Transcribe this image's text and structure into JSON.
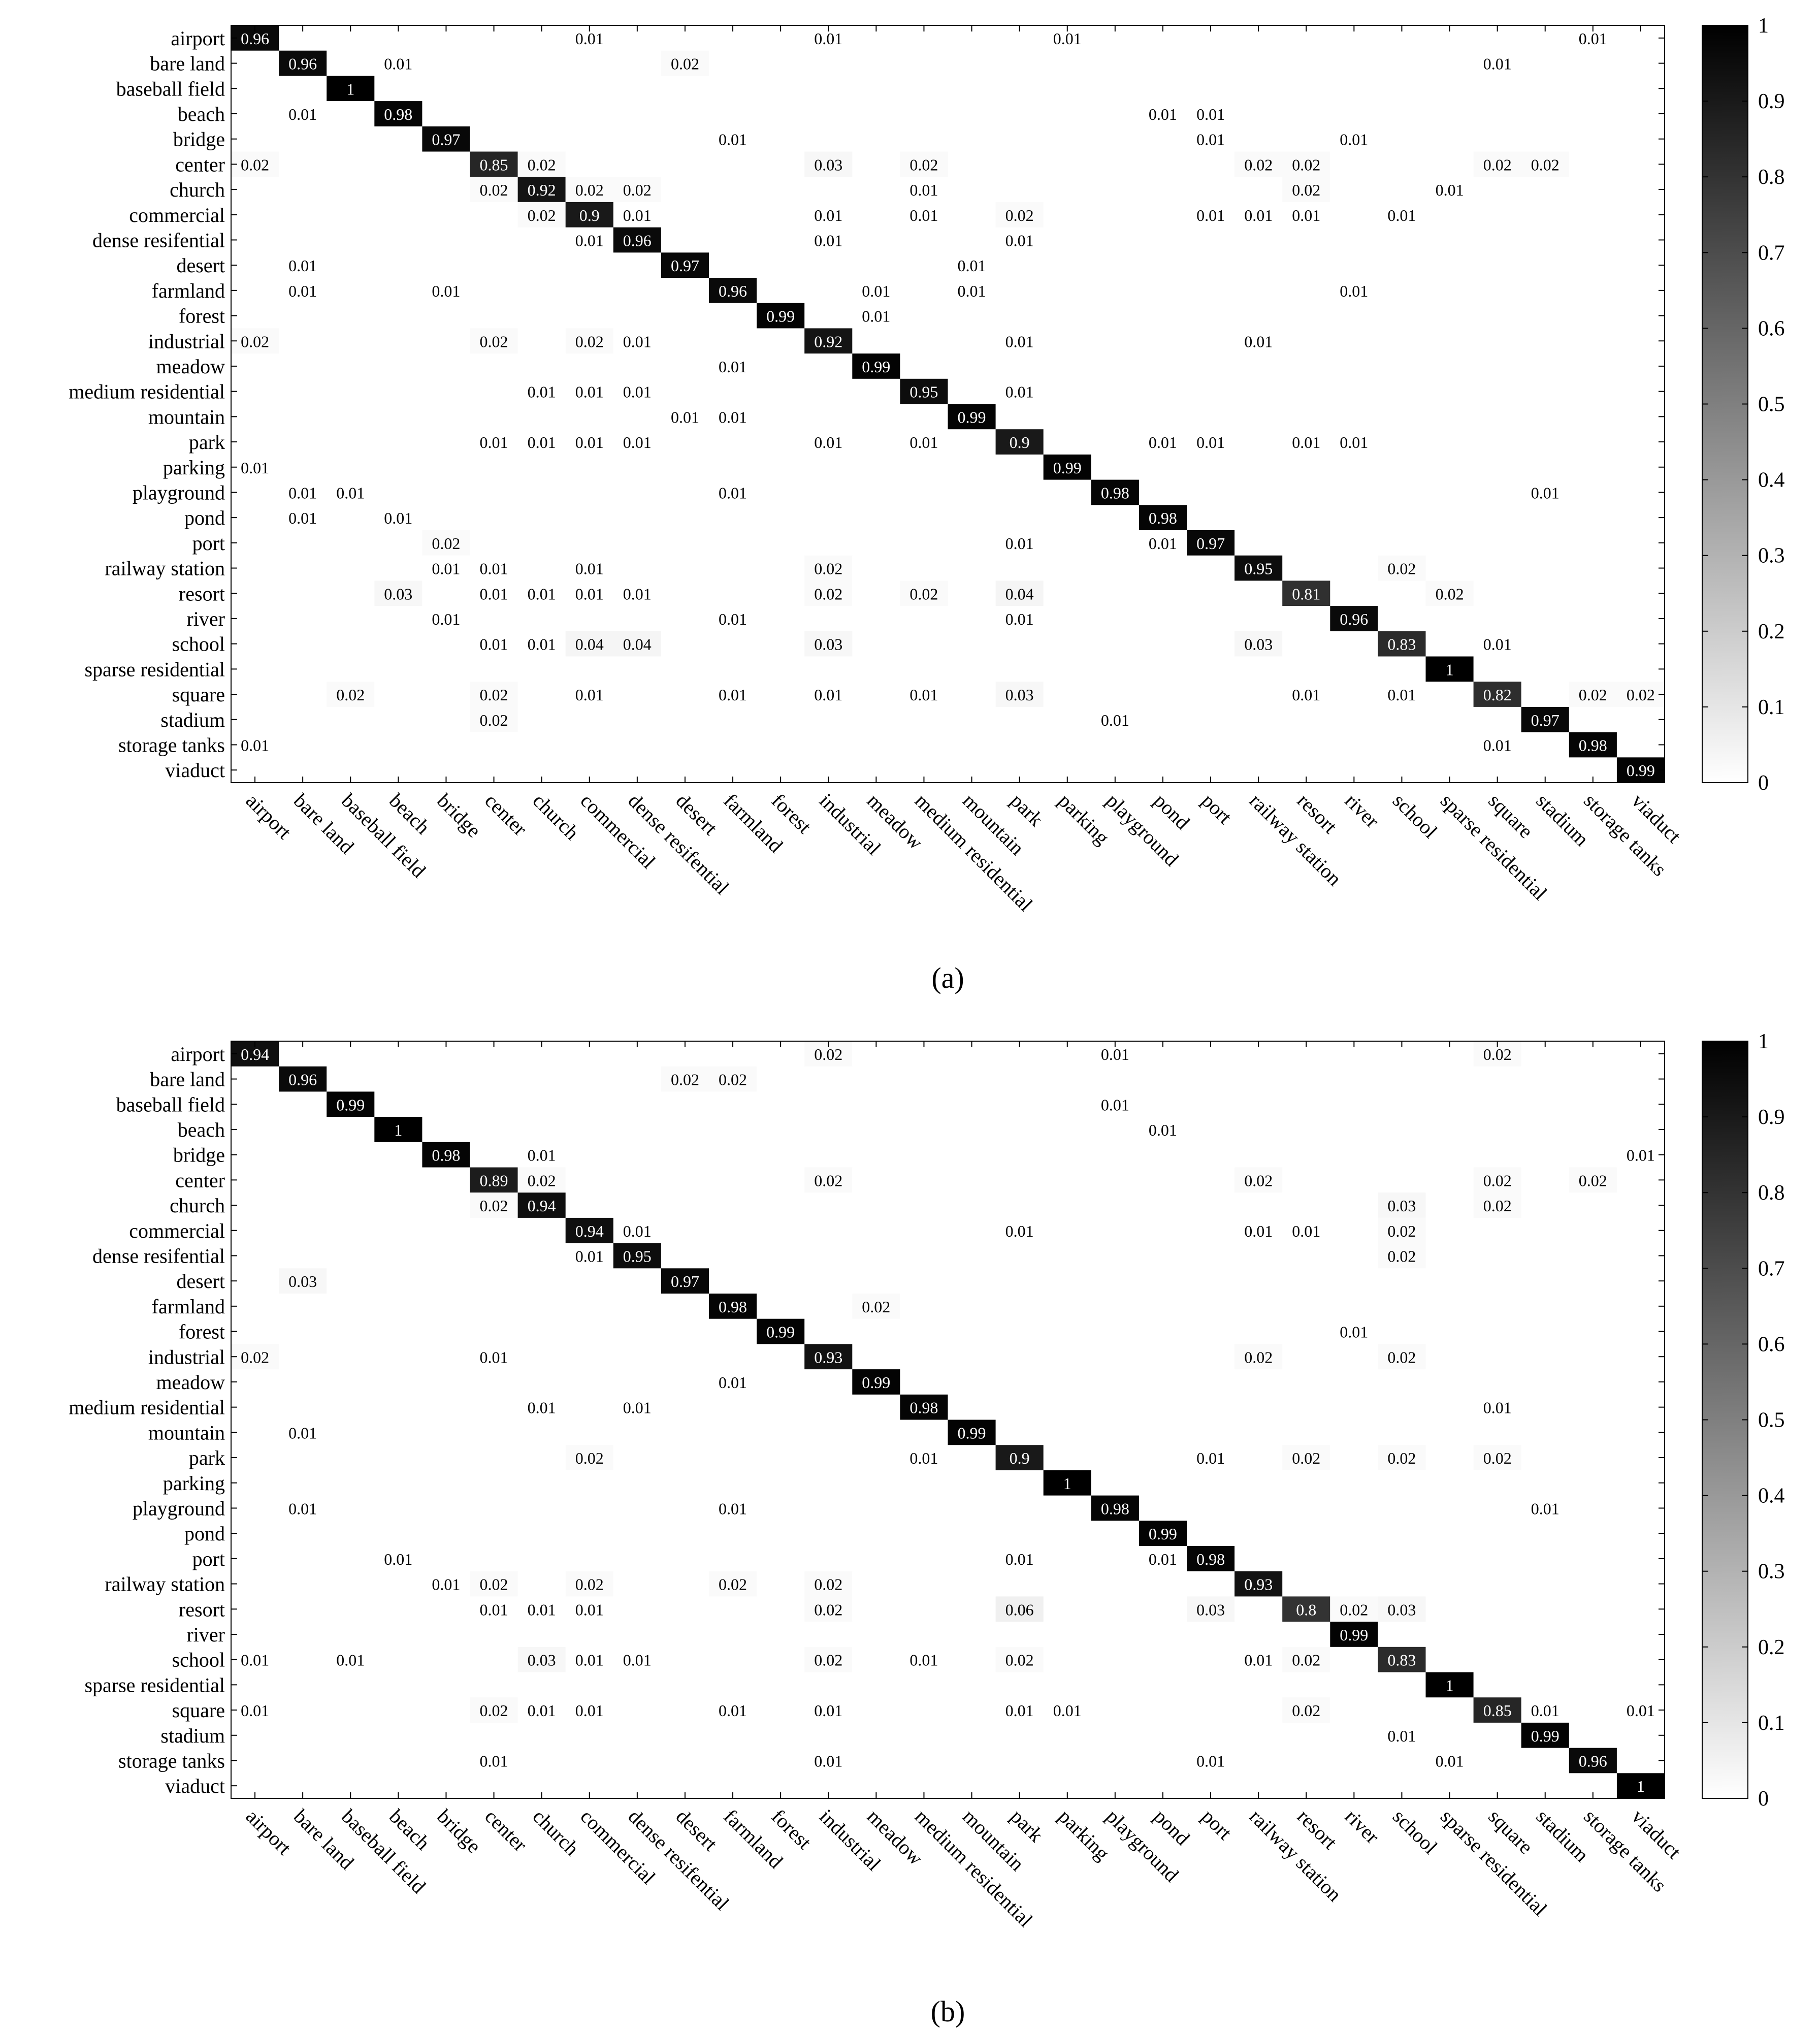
{
  "classes": [
    "airport",
    "bare land",
    "baseball field",
    "beach",
    "bridge",
    "center",
    "church",
    "commercial",
    "dense resifential",
    "desert",
    "farmland",
    "forest",
    "industrial",
    "meadow",
    "medium residential",
    "mountain",
    "park",
    "parking",
    "playground",
    "pond",
    "port",
    "railway station",
    "resort",
    "river",
    "school",
    "sparse residential",
    "square",
    "stadium",
    "storage tanks",
    "viaduct"
  ],
  "chart_data": [
    {
      "type": "heatmap",
      "panel_label": "(a)",
      "title": "",
      "xlabel": "",
      "ylabel": "",
      "vmin": 0,
      "vmax": 1,
      "colorbar_ticks": [
        "0",
        "0.1",
        "0.2",
        "0.3",
        "0.4",
        "0.5",
        "0.6",
        "0.7",
        "0.8",
        "0.9",
        "1"
      ],
      "cells": [
        [
          0,
          0,
          "0.96"
        ],
        [
          0,
          7,
          "0.01"
        ],
        [
          0,
          12,
          "0.01"
        ],
        [
          0,
          17,
          "0.01"
        ],
        [
          0,
          28,
          "0.01"
        ],
        [
          1,
          1,
          "0.96"
        ],
        [
          1,
          3,
          "0.01"
        ],
        [
          1,
          9,
          "0.02"
        ],
        [
          1,
          26,
          "0.01"
        ],
        [
          2,
          2,
          "1"
        ],
        [
          3,
          1,
          "0.01"
        ],
        [
          3,
          3,
          "0.98"
        ],
        [
          3,
          19,
          "0.01"
        ],
        [
          3,
          20,
          "0.01"
        ],
        [
          4,
          4,
          "0.97"
        ],
        [
          4,
          10,
          "0.01"
        ],
        [
          4,
          20,
          "0.01"
        ],
        [
          4,
          23,
          "0.01"
        ],
        [
          5,
          0,
          "0.02"
        ],
        [
          5,
          5,
          "0.85"
        ],
        [
          5,
          6,
          "0.02"
        ],
        [
          5,
          12,
          "0.03"
        ],
        [
          5,
          14,
          "0.02"
        ],
        [
          5,
          21,
          "0.02"
        ],
        [
          5,
          22,
          "0.02"
        ],
        [
          5,
          26,
          "0.02"
        ],
        [
          5,
          27,
          "0.02"
        ],
        [
          6,
          5,
          "0.02"
        ],
        [
          6,
          6,
          "0.92"
        ],
        [
          6,
          7,
          "0.02"
        ],
        [
          6,
          8,
          "0.02"
        ],
        [
          6,
          14,
          "0.01"
        ],
        [
          6,
          22,
          "0.02"
        ],
        [
          6,
          25,
          "0.01"
        ],
        [
          7,
          6,
          "0.02"
        ],
        [
          7,
          7,
          "0.9"
        ],
        [
          7,
          8,
          "0.01"
        ],
        [
          7,
          12,
          "0.01"
        ],
        [
          7,
          14,
          "0.01"
        ],
        [
          7,
          16,
          "0.02"
        ],
        [
          7,
          20,
          "0.01"
        ],
        [
          7,
          21,
          "0.01"
        ],
        [
          7,
          22,
          "0.01"
        ],
        [
          7,
          24,
          "0.01"
        ],
        [
          8,
          7,
          "0.01"
        ],
        [
          8,
          8,
          "0.96"
        ],
        [
          8,
          12,
          "0.01"
        ],
        [
          8,
          16,
          "0.01"
        ],
        [
          9,
          1,
          "0.01"
        ],
        [
          9,
          9,
          "0.97"
        ],
        [
          9,
          15,
          "0.01"
        ],
        [
          10,
          1,
          "0.01"
        ],
        [
          10,
          4,
          "0.01"
        ],
        [
          10,
          10,
          "0.96"
        ],
        [
          10,
          13,
          "0.01"
        ],
        [
          10,
          15,
          "0.01"
        ],
        [
          10,
          23,
          "0.01"
        ],
        [
          11,
          11,
          "0.99"
        ],
        [
          11,
          13,
          "0.01"
        ],
        [
          12,
          0,
          "0.02"
        ],
        [
          12,
          5,
          "0.02"
        ],
        [
          12,
          7,
          "0.02"
        ],
        [
          12,
          8,
          "0.01"
        ],
        [
          12,
          12,
          "0.92"
        ],
        [
          12,
          16,
          "0.01"
        ],
        [
          12,
          21,
          "0.01"
        ],
        [
          13,
          10,
          "0.01"
        ],
        [
          13,
          13,
          "0.99"
        ],
        [
          14,
          6,
          "0.01"
        ],
        [
          14,
          7,
          "0.01"
        ],
        [
          14,
          8,
          "0.01"
        ],
        [
          14,
          14,
          "0.95"
        ],
        [
          14,
          16,
          "0.01"
        ],
        [
          15,
          9,
          "0.01"
        ],
        [
          15,
          10,
          "0.01"
        ],
        [
          15,
          15,
          "0.99"
        ],
        [
          16,
          5,
          "0.01"
        ],
        [
          16,
          6,
          "0.01"
        ],
        [
          16,
          7,
          "0.01"
        ],
        [
          16,
          8,
          "0.01"
        ],
        [
          16,
          12,
          "0.01"
        ],
        [
          16,
          14,
          "0.01"
        ],
        [
          16,
          16,
          "0.9"
        ],
        [
          16,
          19,
          "0.01"
        ],
        [
          16,
          20,
          "0.01"
        ],
        [
          16,
          22,
          "0.01"
        ],
        [
          16,
          23,
          "0.01"
        ],
        [
          17,
          0,
          "0.01"
        ],
        [
          17,
          17,
          "0.99"
        ],
        [
          18,
          1,
          "0.01"
        ],
        [
          18,
          2,
          "0.01"
        ],
        [
          18,
          10,
          "0.01"
        ],
        [
          18,
          18,
          "0.98"
        ],
        [
          18,
          27,
          "0.01"
        ],
        [
          19,
          1,
          "0.01"
        ],
        [
          19,
          3,
          "0.01"
        ],
        [
          19,
          19,
          "0.98"
        ],
        [
          20,
          4,
          "0.02"
        ],
        [
          20,
          16,
          "0.01"
        ],
        [
          20,
          19,
          "0.01"
        ],
        [
          20,
          20,
          "0.97"
        ],
        [
          21,
          4,
          "0.01"
        ],
        [
          21,
          5,
          "0.01"
        ],
        [
          21,
          7,
          "0.01"
        ],
        [
          21,
          12,
          "0.02"
        ],
        [
          21,
          21,
          "0.95"
        ],
        [
          21,
          24,
          "0.02"
        ],
        [
          22,
          3,
          "0.03"
        ],
        [
          22,
          5,
          "0.01"
        ],
        [
          22,
          6,
          "0.01"
        ],
        [
          22,
          7,
          "0.01"
        ],
        [
          22,
          8,
          "0.01"
        ],
        [
          22,
          12,
          "0.02"
        ],
        [
          22,
          14,
          "0.02"
        ],
        [
          22,
          16,
          "0.04"
        ],
        [
          22,
          22,
          "0.81"
        ],
        [
          22,
          25,
          "0.02"
        ],
        [
          23,
          4,
          "0.01"
        ],
        [
          23,
          10,
          "0.01"
        ],
        [
          23,
          16,
          "0.01"
        ],
        [
          23,
          23,
          "0.96"
        ],
        [
          24,
          5,
          "0.01"
        ],
        [
          24,
          6,
          "0.01"
        ],
        [
          24,
          7,
          "0.04"
        ],
        [
          24,
          8,
          "0.04"
        ],
        [
          24,
          12,
          "0.03"
        ],
        [
          24,
          21,
          "0.03"
        ],
        [
          24,
          24,
          "0.83"
        ],
        [
          24,
          26,
          "0.01"
        ],
        [
          25,
          25,
          "1"
        ],
        [
          26,
          2,
          "0.02"
        ],
        [
          26,
          5,
          "0.02"
        ],
        [
          26,
          7,
          "0.01"
        ],
        [
          26,
          10,
          "0.01"
        ],
        [
          26,
          12,
          "0.01"
        ],
        [
          26,
          14,
          "0.01"
        ],
        [
          26,
          16,
          "0.03"
        ],
        [
          26,
          22,
          "0.01"
        ],
        [
          26,
          24,
          "0.01"
        ],
        [
          26,
          26,
          "0.82"
        ],
        [
          26,
          28,
          "0.02"
        ],
        [
          26,
          29,
          "0.02"
        ],
        [
          27,
          5,
          "0.02"
        ],
        [
          27,
          18,
          "0.01"
        ],
        [
          27,
          27,
          "0.97"
        ],
        [
          28,
          0,
          "0.01"
        ],
        [
          28,
          26,
          "0.01"
        ],
        [
          28,
          28,
          "0.98"
        ],
        [
          29,
          29,
          "0.99"
        ]
      ]
    },
    {
      "type": "heatmap",
      "panel_label": "(b)",
      "title": "",
      "xlabel": "",
      "ylabel": "",
      "vmin": 0,
      "vmax": 1,
      "colorbar_ticks": [
        "0",
        "0.1",
        "0.2",
        "0.3",
        "0.4",
        "0.5",
        "0.6",
        "0.7",
        "0.8",
        "0.9",
        "1"
      ],
      "cells": [
        [
          0,
          0,
          "0.94"
        ],
        [
          0,
          12,
          "0.02"
        ],
        [
          0,
          18,
          "0.01"
        ],
        [
          0,
          26,
          "0.02"
        ],
        [
          1,
          1,
          "0.96"
        ],
        [
          1,
          9,
          "0.02"
        ],
        [
          1,
          10,
          "0.02"
        ],
        [
          2,
          2,
          "0.99"
        ],
        [
          2,
          18,
          "0.01"
        ],
        [
          3,
          3,
          "1"
        ],
        [
          3,
          19,
          "0.01"
        ],
        [
          4,
          4,
          "0.98"
        ],
        [
          4,
          6,
          "0.01"
        ],
        [
          4,
          29,
          "0.01"
        ],
        [
          5,
          5,
          "0.89"
        ],
        [
          5,
          6,
          "0.02"
        ],
        [
          5,
          12,
          "0.02"
        ],
        [
          5,
          21,
          "0.02"
        ],
        [
          5,
          26,
          "0.02"
        ],
        [
          5,
          28,
          "0.02"
        ],
        [
          6,
          5,
          "0.02"
        ],
        [
          6,
          6,
          "0.94"
        ],
        [
          6,
          24,
          "0.03"
        ],
        [
          6,
          26,
          "0.02"
        ],
        [
          7,
          7,
          "0.94"
        ],
        [
          7,
          8,
          "0.01"
        ],
        [
          7,
          16,
          "0.01"
        ],
        [
          7,
          21,
          "0.01"
        ],
        [
          7,
          22,
          "0.01"
        ],
        [
          7,
          24,
          "0.02"
        ],
        [
          8,
          7,
          "0.01"
        ],
        [
          8,
          8,
          "0.95"
        ],
        [
          8,
          24,
          "0.02"
        ],
        [
          9,
          1,
          "0.03"
        ],
        [
          9,
          9,
          "0.97"
        ],
        [
          10,
          10,
          "0.98"
        ],
        [
          10,
          13,
          "0.02"
        ],
        [
          11,
          11,
          "0.99"
        ],
        [
          11,
          23,
          "0.01"
        ],
        [
          12,
          0,
          "0.02"
        ],
        [
          12,
          5,
          "0.01"
        ],
        [
          12,
          12,
          "0.93"
        ],
        [
          12,
          21,
          "0.02"
        ],
        [
          12,
          24,
          "0.02"
        ],
        [
          13,
          10,
          "0.01"
        ],
        [
          13,
          13,
          "0.99"
        ],
        [
          14,
          6,
          "0.01"
        ],
        [
          14,
          8,
          "0.01"
        ],
        [
          14,
          14,
          "0.98"
        ],
        [
          14,
          26,
          "0.01"
        ],
        [
          15,
          1,
          "0.01"
        ],
        [
          15,
          15,
          "0.99"
        ],
        [
          16,
          7,
          "0.02"
        ],
        [
          16,
          14,
          "0.01"
        ],
        [
          16,
          16,
          "0.9"
        ],
        [
          16,
          20,
          "0.01"
        ],
        [
          16,
          22,
          "0.02"
        ],
        [
          16,
          24,
          "0.02"
        ],
        [
          16,
          26,
          "0.02"
        ],
        [
          17,
          17,
          "1"
        ],
        [
          18,
          1,
          "0.01"
        ],
        [
          18,
          10,
          "0.01"
        ],
        [
          18,
          18,
          "0.98"
        ],
        [
          18,
          27,
          "0.01"
        ],
        [
          19,
          19,
          "0.99"
        ],
        [
          20,
          3,
          "0.01"
        ],
        [
          20,
          16,
          "0.01"
        ],
        [
          20,
          19,
          "0.01"
        ],
        [
          20,
          20,
          "0.98"
        ],
        [
          21,
          4,
          "0.01"
        ],
        [
          21,
          5,
          "0.02"
        ],
        [
          21,
          7,
          "0.02"
        ],
        [
          21,
          10,
          "0.02"
        ],
        [
          21,
          12,
          "0.02"
        ],
        [
          21,
          21,
          "0.93"
        ],
        [
          22,
          5,
          "0.01"
        ],
        [
          22,
          6,
          "0.01"
        ],
        [
          22,
          7,
          "0.01"
        ],
        [
          22,
          12,
          "0.02"
        ],
        [
          22,
          16,
          "0.06"
        ],
        [
          22,
          20,
          "0.03"
        ],
        [
          22,
          22,
          "0.8"
        ],
        [
          22,
          23,
          "0.02"
        ],
        [
          22,
          24,
          "0.03"
        ],
        [
          23,
          23,
          "0.99"
        ],
        [
          24,
          0,
          "0.01"
        ],
        [
          24,
          2,
          "0.01"
        ],
        [
          24,
          6,
          "0.03"
        ],
        [
          24,
          7,
          "0.01"
        ],
        [
          24,
          8,
          "0.01"
        ],
        [
          24,
          12,
          "0.02"
        ],
        [
          24,
          14,
          "0.01"
        ],
        [
          24,
          16,
          "0.02"
        ],
        [
          24,
          21,
          "0.01"
        ],
        [
          24,
          22,
          "0.02"
        ],
        [
          24,
          24,
          "0.83"
        ],
        [
          25,
          25,
          "1"
        ],
        [
          26,
          0,
          "0.01"
        ],
        [
          26,
          5,
          "0.02"
        ],
        [
          26,
          6,
          "0.01"
        ],
        [
          26,
          7,
          "0.01"
        ],
        [
          26,
          10,
          "0.01"
        ],
        [
          26,
          12,
          "0.01"
        ],
        [
          26,
          16,
          "0.01"
        ],
        [
          26,
          17,
          "0.01"
        ],
        [
          26,
          22,
          "0.02"
        ],
        [
          26,
          26,
          "0.85"
        ],
        [
          26,
          27,
          "0.01"
        ],
        [
          26,
          29,
          "0.01"
        ],
        [
          27,
          24,
          "0.01"
        ],
        [
          27,
          27,
          "0.99"
        ],
        [
          28,
          5,
          "0.01"
        ],
        [
          28,
          12,
          "0.01"
        ],
        [
          28,
          20,
          "0.01"
        ],
        [
          28,
          25,
          "0.01"
        ],
        [
          28,
          28,
          "0.96"
        ],
        [
          29,
          29,
          "1"
        ]
      ]
    }
  ]
}
